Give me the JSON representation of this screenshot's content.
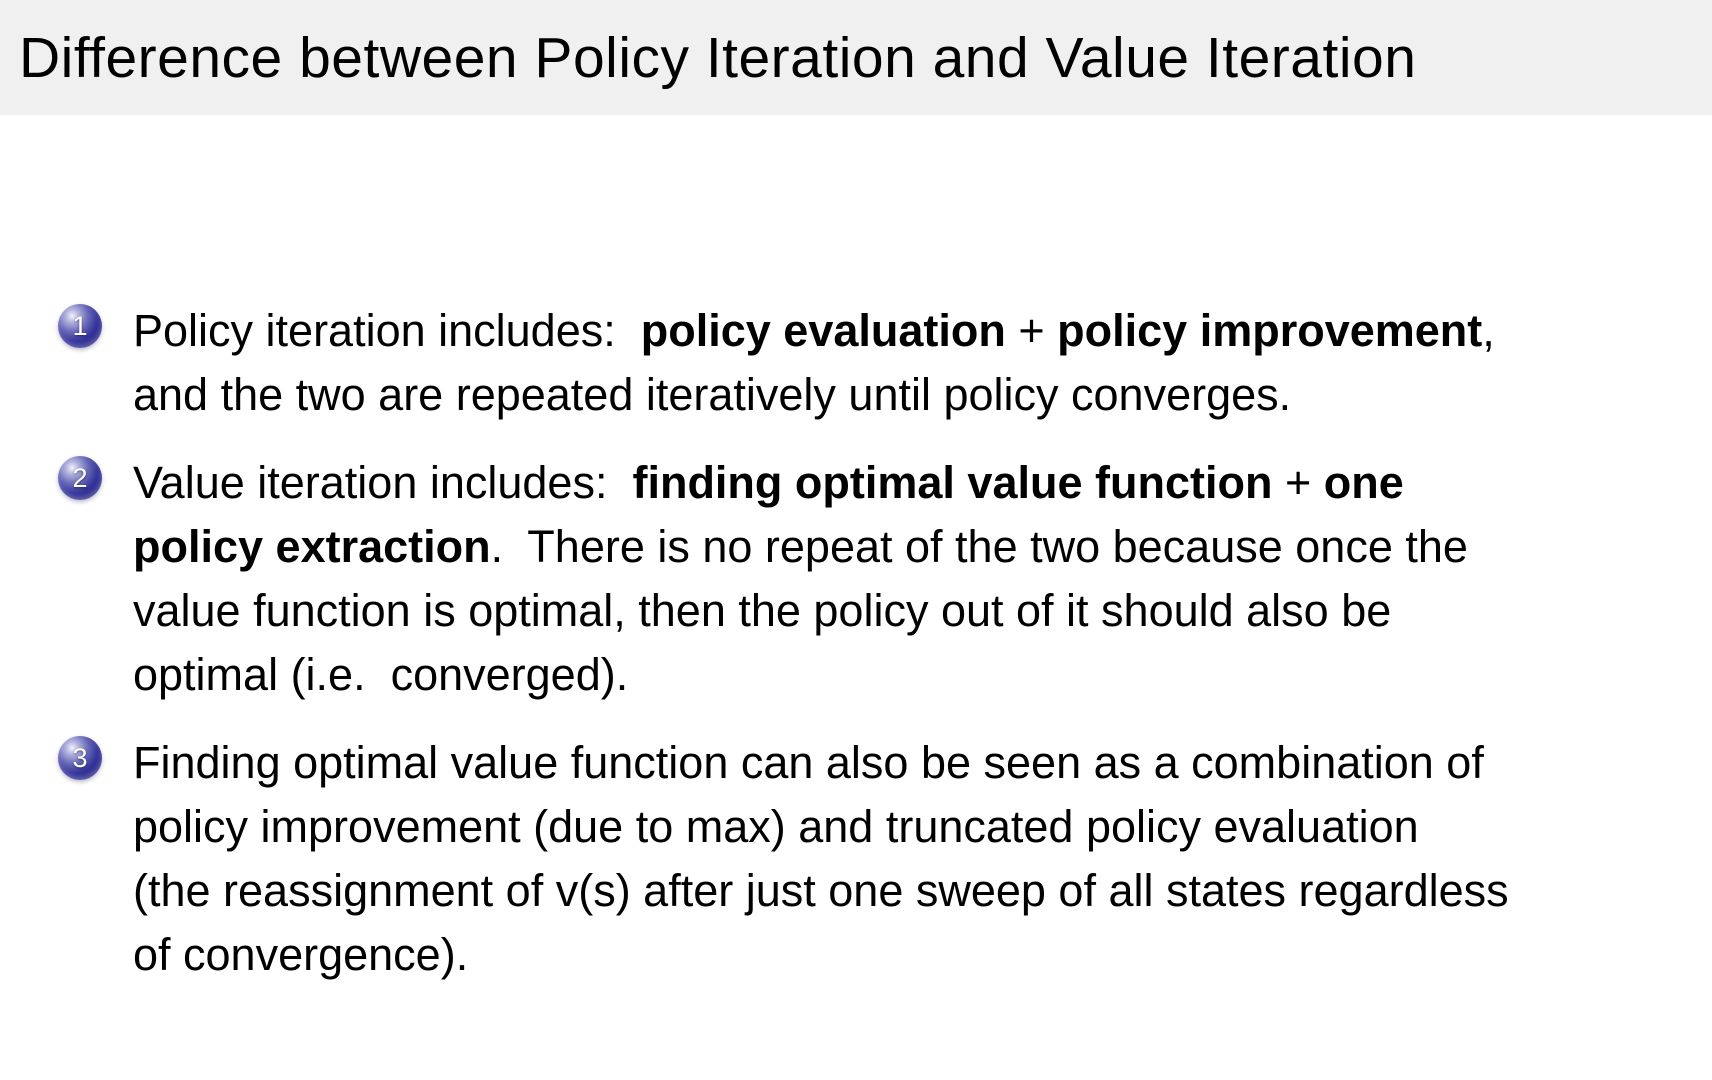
{
  "title": "Difference between Policy Iteration and Value Iteration",
  "colors": {
    "title_bar_bg": "#f0f0f0",
    "slide_bg": "#ffffff",
    "text": "#000000",
    "ball_blue": "#35359c",
    "ball_number": "#ffffff"
  },
  "items": [
    {
      "number": "1",
      "lines": [
        {
          "segments": [
            {
              "text": "Policy iteration includes:  ",
              "bold": false
            },
            {
              "text": "policy evaluation",
              "bold": true
            },
            {
              "text": " + ",
              "bold": false
            },
            {
              "text": "policy improvement",
              "bold": true
            },
            {
              "text": ",",
              "bold": false
            }
          ]
        },
        {
          "segments": [
            {
              "text": "and the two are repeated iteratively until policy converges.",
              "bold": false
            }
          ]
        }
      ]
    },
    {
      "number": "2",
      "lines": [
        {
          "segments": [
            {
              "text": "Value iteration includes:  ",
              "bold": false
            },
            {
              "text": "finding optimal value function",
              "bold": true
            },
            {
              "text": " + ",
              "bold": false
            },
            {
              "text": "one",
              "bold": true
            }
          ]
        },
        {
          "segments": [
            {
              "text": "policy extraction",
              "bold": true
            },
            {
              "text": ".  There is no repeat of the two because once the",
              "bold": false
            }
          ]
        },
        {
          "segments": [
            {
              "text": "value function is optimal, then the policy out of it should also be",
              "bold": false
            }
          ]
        },
        {
          "segments": [
            {
              "text": "optimal (i.e.  converged).",
              "bold": false
            }
          ]
        }
      ]
    },
    {
      "number": "3",
      "lines": [
        {
          "segments": [
            {
              "text": "Finding optimal value function can also be seen as a combination of",
              "bold": false
            }
          ]
        },
        {
          "segments": [
            {
              "text": "policy improvement (due to max) and truncated policy evaluation",
              "bold": false
            }
          ]
        },
        {
          "segments": [
            {
              "text": "(the reassignment of v(s) after just one sweep of all states regardless",
              "bold": false
            }
          ]
        },
        {
          "segments": [
            {
              "text": "of convergence).",
              "bold": false
            }
          ]
        }
      ]
    }
  ]
}
